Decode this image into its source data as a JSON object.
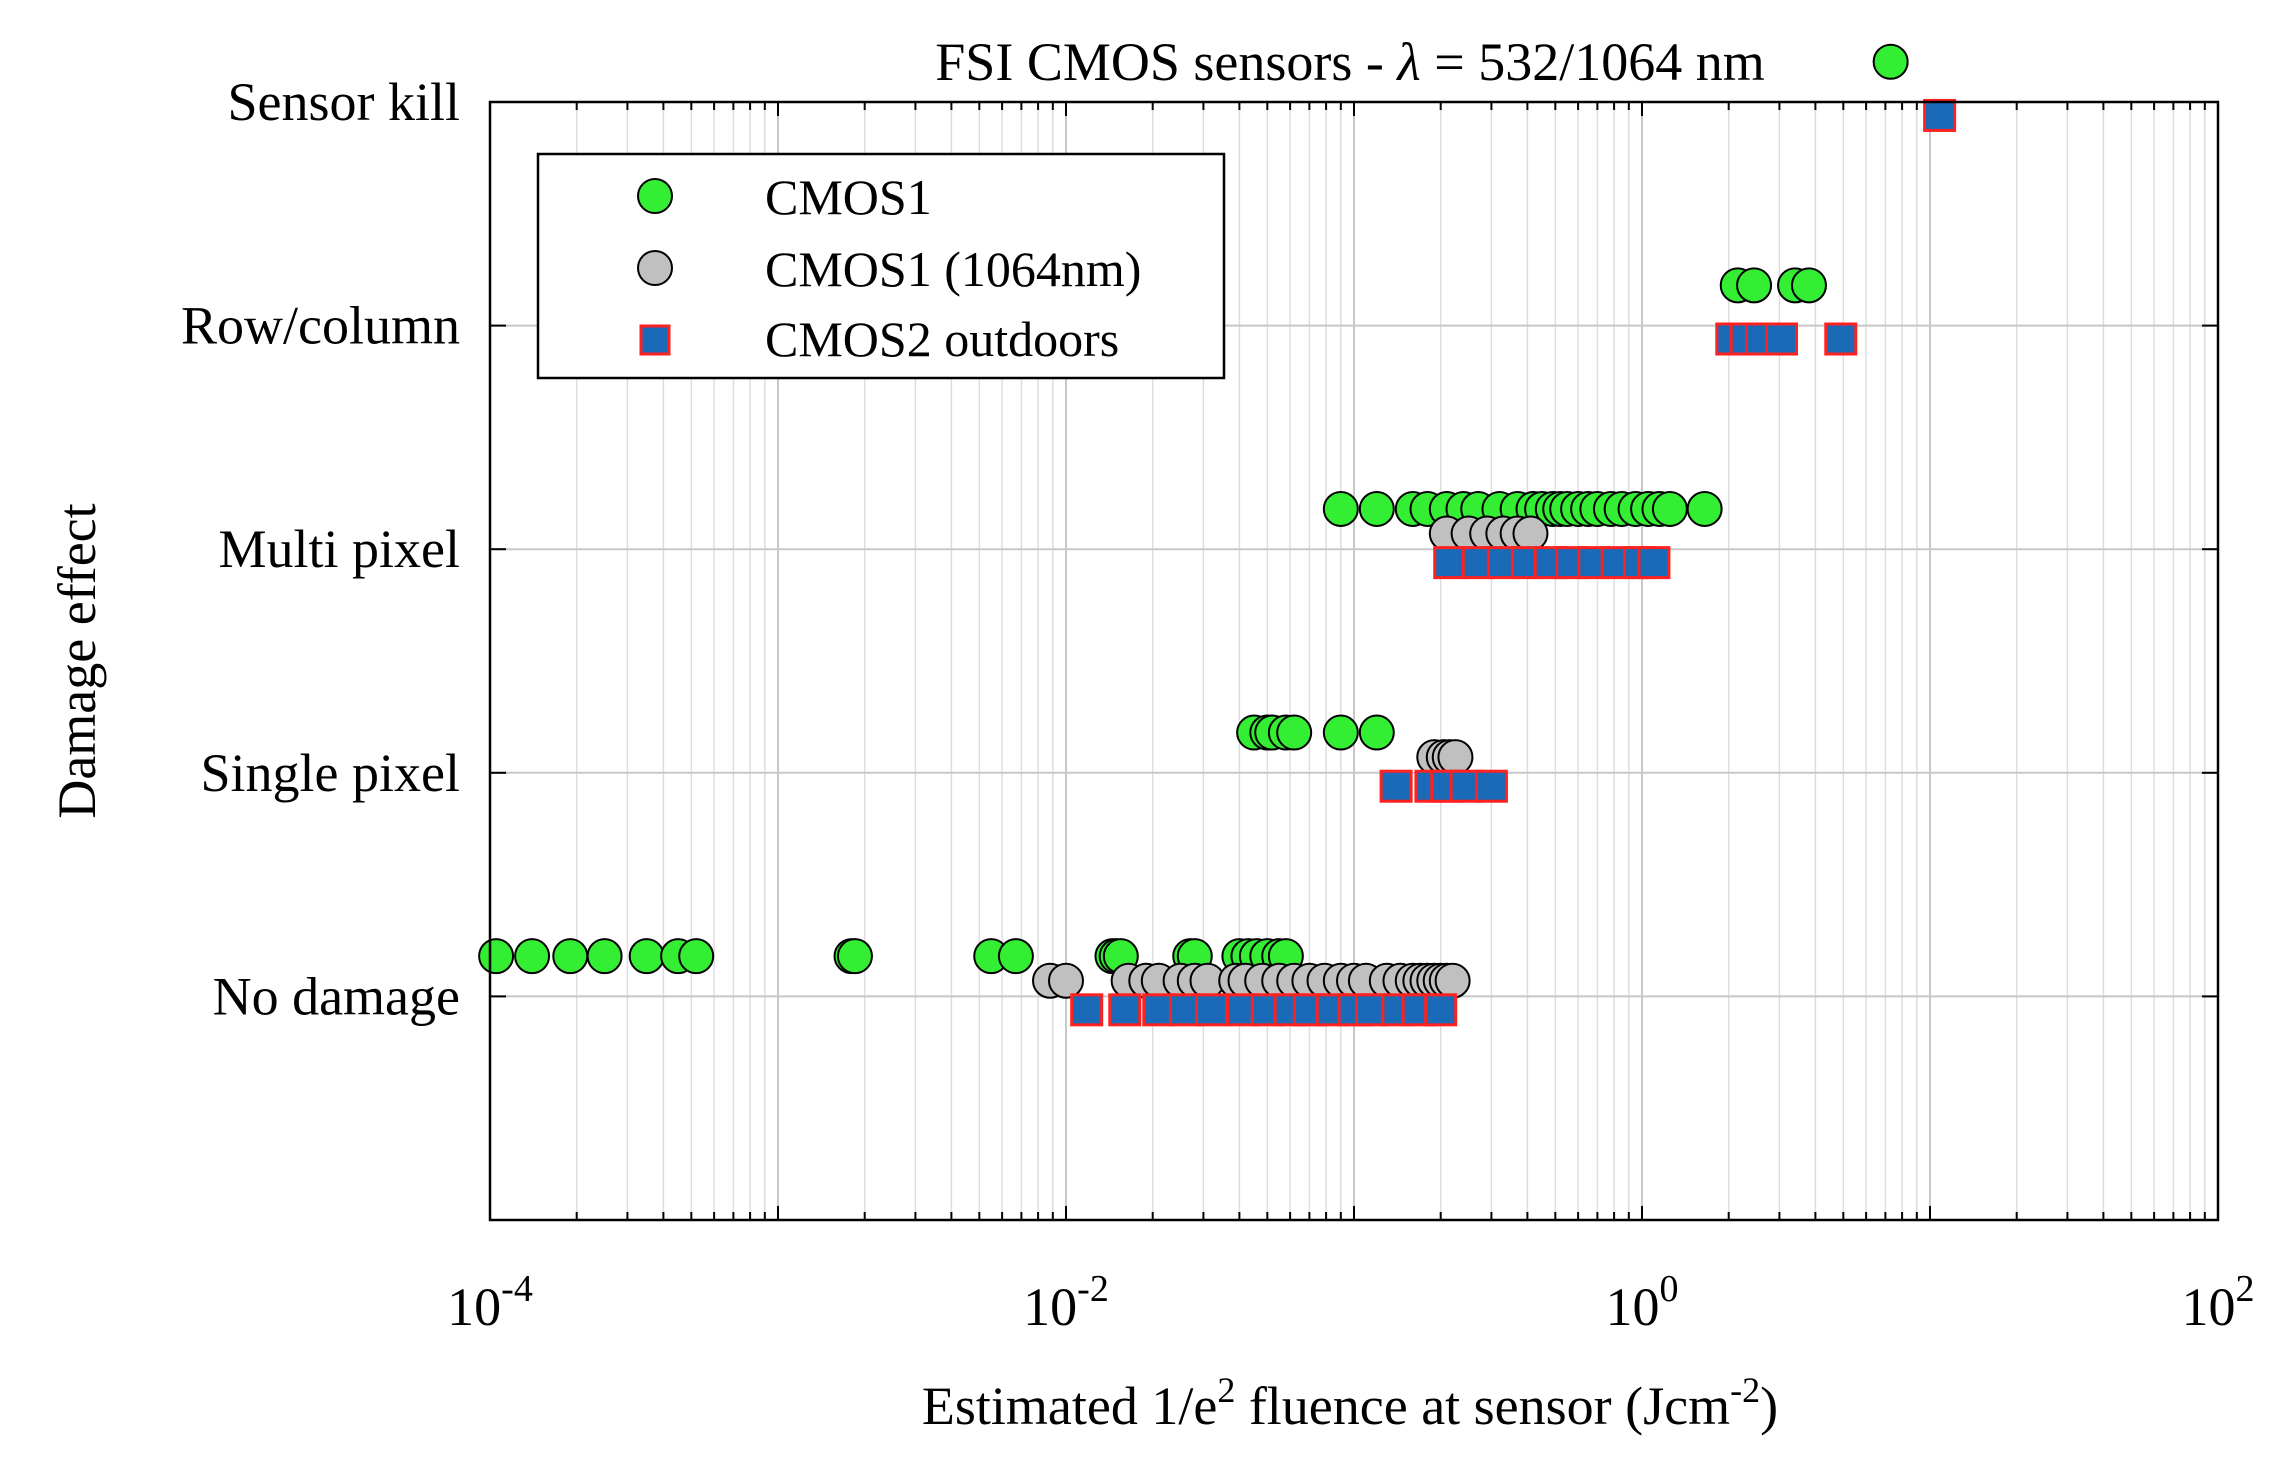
{
  "chart_data": {
    "type": "scatter",
    "title": "FSI CMOS sensors - λ = 532/1064 nm",
    "title_prefix": "FSI CMOS sensors - ",
    "title_symbol": "λ",
    "title_suffix": " = 532/1064 nm",
    "xlabel": "Estimated 1/e2 fluence at sensor (Jcm-2)",
    "xlabel_part1": "Estimated 1/e",
    "xlabel_sup1": "2",
    "xlabel_part2": " fluence at sensor (Jcm",
    "xlabel_sup2": "-2",
    "xlabel_part3": ")",
    "ylabel": "Damage effect",
    "x_scale": "log",
    "xlim": [
      0.0001,
      100
    ],
    "ylim": [
      0,
      5
    ],
    "x_ticks": [
      {
        "base": "10",
        "exp": "-4",
        "value": 0.0001
      },
      {
        "base": "10",
        "exp": "-2",
        "value": 0.01
      },
      {
        "base": "10",
        "exp": "0",
        "value": 1
      },
      {
        "base": "10",
        "exp": "2",
        "value": 100
      }
    ],
    "categories": [
      "No damage",
      "Single pixel",
      "Multi pixel",
      "Row/column",
      "Sensor kill"
    ],
    "grid": true,
    "legend_position": "top-left",
    "series": [
      {
        "name": "CMOS1",
        "marker": "circle",
        "color": "#33ee33",
        "edge_color": "#000000",
        "y_offset": 0.18,
        "points": [
          {
            "category": "No damage",
            "x": [
              0.000105,
              0.00014,
              0.00019,
              0.00025,
              0.00035,
              0.00045,
              0.00052,
              0.0018,
              0.00185,
              0.0055,
              0.0067,
              0.0145,
              0.015,
              0.0155,
              0.027,
              0.028,
              0.04,
              0.043,
              0.046,
              0.05,
              0.055,
              0.058
            ]
          },
          {
            "category": "Single pixel",
            "x": [
              0.045,
              0.05,
              0.052,
              0.058,
              0.062,
              0.09,
              0.12
            ]
          },
          {
            "category": "Multi pixel",
            "x": [
              0.09,
              0.12,
              0.16,
              0.18,
              0.21,
              0.24,
              0.27,
              0.32,
              0.37,
              0.42,
              0.45,
              0.49,
              0.52,
              0.55,
              0.6,
              0.65,
              0.7,
              0.78,
              0.85,
              0.95,
              1.05,
              1.15,
              1.25,
              1.65
            ]
          },
          {
            "category": "Row/column",
            "x": [
              2.15,
              2.45,
              3.4,
              3.8
            ]
          },
          {
            "category": "Sensor kill",
            "x": [
              7.3
            ]
          }
        ]
      },
      {
        "name": "CMOS1 (1064nm)",
        "marker": "circle",
        "color": "#c0c0c0",
        "edge_color": "#000000",
        "y_offset": 0.07,
        "points": [
          {
            "category": "No damage",
            "x": [
              0.0088,
              0.01,
              0.0165,
              0.019,
              0.021,
              0.025,
              0.028,
              0.031,
              0.039,
              0.042,
              0.048,
              0.055,
              0.062,
              0.07,
              0.079,
              0.09,
              0.1,
              0.11,
              0.13,
              0.145,
              0.16,
              0.17,
              0.18,
              0.19,
              0.2,
              0.21,
              0.22
            ]
          },
          {
            "category": "Single pixel",
            "x": [
              0.19,
              0.205,
              0.215,
              0.225
            ]
          },
          {
            "category": "Multi pixel",
            "x": [
              0.21,
              0.25,
              0.29,
              0.33,
              0.37,
              0.41
            ]
          }
        ]
      },
      {
        "name": "CMOS2 outdoors",
        "marker": "square",
        "color": "#1a6ab8",
        "edge_color": "#ff2020",
        "y_offset": -0.06,
        "points": [
          {
            "category": "No damage",
            "x": [
              0.0118,
              0.016,
              0.021,
              0.026,
              0.032,
              0.041,
              0.05,
              0.06,
              0.07,
              0.084,
              0.1,
              0.115,
              0.142,
              0.167,
              0.2
            ]
          },
          {
            "category": "Single pixel",
            "x": [
              0.14,
              0.185,
              0.21,
              0.245,
              0.3
            ]
          },
          {
            "category": "Multi pixel",
            "x": [
              0.215,
              0.27,
              0.33,
              0.4,
              0.48,
              0.57,
              0.68,
              0.82,
              0.98,
              1.1
            ]
          },
          {
            "category": "Row/column",
            "x": [
              2.05,
              2.3,
              2.6,
              3.05,
              4.9
            ]
          },
          {
            "category": "Sensor kill",
            "x": [
              10.8
            ]
          }
        ]
      }
    ]
  }
}
